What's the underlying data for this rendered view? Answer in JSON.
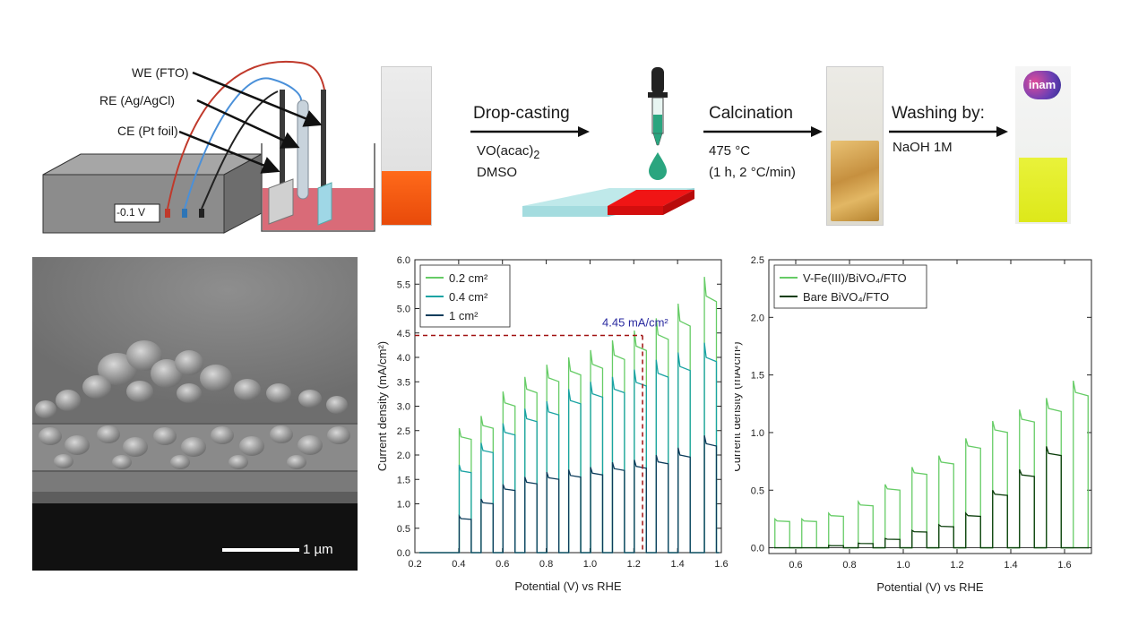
{
  "schematic": {
    "potentiostat_display": "-0.1 V",
    "electrode_labels": [
      "WE (FTO)",
      "RE (Ag/AgCl)",
      "CE (Pt foil)"
    ]
  },
  "process": {
    "step1_title": "Drop-casting",
    "step1_line1_main": "VO(acac)",
    "step1_line1_sub": "2",
    "step1_line2": "DMSO",
    "step2_title": "Calcination",
    "step2_line1": "475 °C",
    "step2_line2": "(1 h, 2 °C/min)",
    "step3_title": "Washing by:",
    "step3_line1": "NaOH 1M",
    "vial_logo_text": "inam"
  },
  "sem": {
    "scale_label": "1 µm"
  },
  "colors": {
    "light_green": "#66cc66",
    "teal": "#1aa3a3",
    "navy": "#0d3d5c",
    "dark_green": "#0a3d0a",
    "dashed_red": "#a01010",
    "annotation_blue": "#2a2aa0"
  },
  "chart_data": [
    {
      "type": "line",
      "xlabel": "Potential (V) vs RHE",
      "ylabel": "Current density (mA/cm²)",
      "xlim": [
        0.2,
        1.6
      ],
      "ylim": [
        0,
        6.0
      ],
      "xticks": [
        "0.2",
        "0.4",
        "0.6",
        "0.8",
        "1.0",
        "1.2",
        "1.4",
        "1.6"
      ],
      "yticks": [
        "0.0",
        "0.5",
        "1.0",
        "1.5",
        "2.0",
        "2.5",
        "3.0",
        "3.5",
        "4.0",
        "4.5",
        "5.0",
        "5.5",
        "6.0"
      ],
      "legend_position": "top-left",
      "annotation": {
        "text": "4.45 mA/cm²",
        "x": 1.24,
        "y": 4.45
      },
      "series": [
        {
          "name": "0.2 cm²",
          "chopped_light_on": true,
          "peaks": [
            [
              0.43,
              2.55
            ],
            [
              0.53,
              2.8
            ],
            [
              0.63,
              3.3
            ],
            [
              0.73,
              3.6
            ],
            [
              0.83,
              3.85
            ],
            [
              0.93,
              4.0
            ],
            [
              1.03,
              4.15
            ],
            [
              1.13,
              4.35
            ],
            [
              1.23,
              4.55
            ],
            [
              1.33,
              4.8
            ],
            [
              1.43,
              5.1
            ],
            [
              1.55,
              5.65
            ]
          ]
        },
        {
          "name": "0.4 cm²",
          "chopped_light_on": true,
          "peaks": [
            [
              0.43,
              1.8
            ],
            [
              0.53,
              2.25
            ],
            [
              0.63,
              2.65
            ],
            [
              0.73,
              2.95
            ],
            [
              0.83,
              3.1
            ],
            [
              0.93,
              3.35
            ],
            [
              1.03,
              3.5
            ],
            [
              1.13,
              3.6
            ],
            [
              1.23,
              3.75
            ],
            [
              1.33,
              3.95
            ],
            [
              1.43,
              4.1
            ],
            [
              1.55,
              4.3
            ]
          ]
        },
        {
          "name": "1 cm²",
          "chopped_light_on": true,
          "peaks": [
            [
              0.43,
              0.75
            ],
            [
              0.53,
              1.1
            ],
            [
              0.63,
              1.4
            ],
            [
              0.73,
              1.55
            ],
            [
              0.83,
              1.65
            ],
            [
              0.93,
              1.7
            ],
            [
              1.03,
              1.75
            ],
            [
              1.13,
              1.85
            ],
            [
              1.23,
              1.9
            ],
            [
              1.33,
              2.0
            ],
            [
              1.43,
              2.15
            ],
            [
              1.55,
              2.4
            ]
          ]
        }
      ]
    },
    {
      "type": "line",
      "xlabel": "Potential (V) vs RHE",
      "ylabel": "Current density (mA/cm²)",
      "xlim": [
        0.5,
        1.7
      ],
      "ylim": [
        -0.05,
        2.5
      ],
      "xticks": [
        "0.6",
        "0.8",
        "1.0",
        "1.2",
        "1.4",
        "1.6"
      ],
      "yticks": [
        "0.0",
        "0.5",
        "1.0",
        "1.5",
        "2.0",
        "2.5"
      ],
      "legend_position": "top-left",
      "series": [
        {
          "name": "V-Fe(III)/BiVO₄/FTO",
          "chopped_light_on": true,
          "peaks": [
            [
              0.55,
              0.25
            ],
            [
              0.65,
              0.25
            ],
            [
              0.75,
              0.3
            ],
            [
              0.86,
              0.4
            ],
            [
              0.96,
              0.55
            ],
            [
              1.06,
              0.7
            ],
            [
              1.16,
              0.8
            ],
            [
              1.26,
              0.95
            ],
            [
              1.36,
              1.1
            ],
            [
              1.46,
              1.2
            ],
            [
              1.56,
              1.3
            ],
            [
              1.66,
              1.45
            ]
          ]
        },
        {
          "name": "Bare BiVO₄/FTO",
          "chopped_light_on": true,
          "peaks": [
            [
              0.75,
              0.02
            ],
            [
              0.86,
              0.04
            ],
            [
              0.96,
              0.08
            ],
            [
              1.06,
              0.15
            ],
            [
              1.16,
              0.2
            ],
            [
              1.26,
              0.3
            ],
            [
              1.36,
              0.5
            ],
            [
              1.46,
              0.68
            ],
            [
              1.56,
              0.88
            ]
          ]
        }
      ]
    }
  ]
}
